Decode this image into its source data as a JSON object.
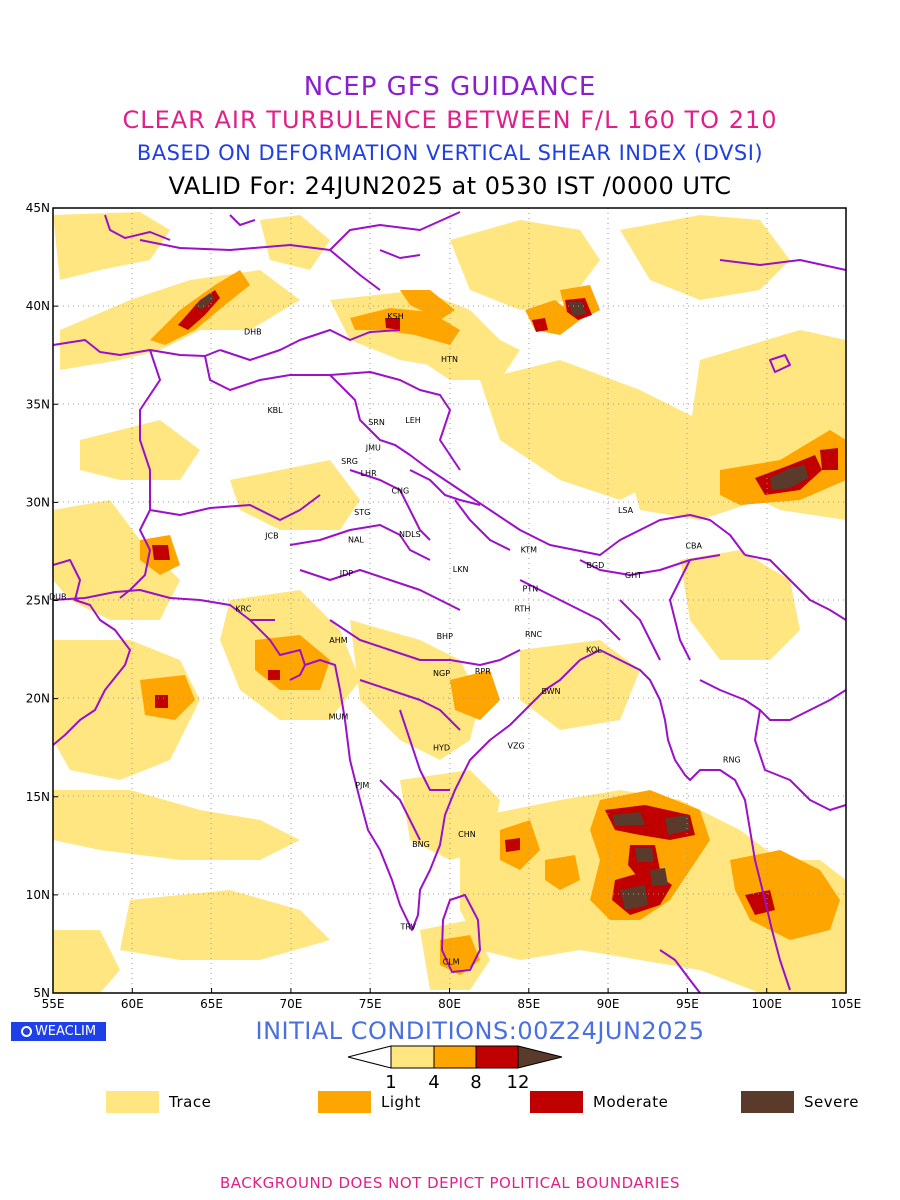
{
  "header": {
    "title_line1": "NCEP GFS GUIDANCE",
    "title_line2": "CLEAR AIR TURBULENCE BETWEEN F/L 160 TO 210",
    "title_line3": "BASED ON DEFORMATION VERTICAL SHEAR INDEX (DVSI)",
    "title_line4": "VALID For: 24JUN2025 at 0530 IST /0000 UTC"
  },
  "map": {
    "lon_labels": [
      "55E",
      "60E",
      "65E",
      "70E",
      "75E",
      "80E",
      "85E",
      "90E",
      "95E",
      "100E",
      "105E"
    ],
    "lat_labels": [
      "45N",
      "40N",
      "35N",
      "30N",
      "25N",
      "20N",
      "15N",
      "10N",
      "5N"
    ],
    "extent": {
      "lon_min": 55,
      "lon_max": 105,
      "lat_min": 5,
      "lat_max": 45
    },
    "cities": [
      {
        "code": "DHB",
        "lon": 67.6,
        "lat": 38.7
      },
      {
        "code": "KSH",
        "lon": 76.6,
        "lat": 39.5
      },
      {
        "code": "HTN",
        "lon": 80.0,
        "lat": 37.3
      },
      {
        "code": "KBL",
        "lon": 69.0,
        "lat": 34.7
      },
      {
        "code": "SRN",
        "lon": 75.4,
        "lat": 34.1
      },
      {
        "code": "LEH",
        "lon": 77.7,
        "lat": 34.2
      },
      {
        "code": "JMU",
        "lon": 75.2,
        "lat": 32.8
      },
      {
        "code": "SRG",
        "lon": 73.7,
        "lat": 32.1
      },
      {
        "code": "LHR",
        "lon": 74.9,
        "lat": 31.5
      },
      {
        "code": "CNG",
        "lon": 76.9,
        "lat": 30.6
      },
      {
        "code": "LSA",
        "lon": 91.1,
        "lat": 29.6
      },
      {
        "code": "STG",
        "lon": 74.5,
        "lat": 29.5
      },
      {
        "code": "JCB",
        "lon": 68.8,
        "lat": 28.3
      },
      {
        "code": "NAL",
        "lon": 74.1,
        "lat": 28.1
      },
      {
        "code": "NDLS",
        "lon": 77.5,
        "lat": 28.4
      },
      {
        "code": "KTM",
        "lon": 85.0,
        "lat": 27.6
      },
      {
        "code": "CBA",
        "lon": 95.4,
        "lat": 27.8
      },
      {
        "code": "JDP",
        "lon": 73.5,
        "lat": 26.4
      },
      {
        "code": "LKN",
        "lon": 80.7,
        "lat": 26.6
      },
      {
        "code": "BGD",
        "lon": 89.2,
        "lat": 26.8
      },
      {
        "code": "GHT",
        "lon": 91.6,
        "lat": 26.3
      },
      {
        "code": "PTN",
        "lon": 85.1,
        "lat": 25.6
      },
      {
        "code": "DUB",
        "lon": 55.3,
        "lat": 25.2
      },
      {
        "code": "KRC",
        "lon": 67.0,
        "lat": 24.6
      },
      {
        "code": "RTH",
        "lon": 84.6,
        "lat": 24.6
      },
      {
        "code": "AHM",
        "lon": 73.0,
        "lat": 23.0
      },
      {
        "code": "BHP",
        "lon": 79.7,
        "lat": 23.2
      },
      {
        "code": "RNC",
        "lon": 85.3,
        "lat": 23.3
      },
      {
        "code": "KOL",
        "lon": 89.1,
        "lat": 22.5
      },
      {
        "code": "NGP",
        "lon": 79.5,
        "lat": 21.3
      },
      {
        "code": "RPR",
        "lon": 82.1,
        "lat": 21.4
      },
      {
        "code": "BWN",
        "lon": 86.4,
        "lat": 20.4
      },
      {
        "code": "MUM",
        "lon": 73.0,
        "lat": 19.1
      },
      {
        "code": "HYD",
        "lon": 79.5,
        "lat": 17.5
      },
      {
        "code": "VZG",
        "lon": 84.2,
        "lat": 17.6
      },
      {
        "code": "RNG",
        "lon": 97.8,
        "lat": 16.9
      },
      {
        "code": "PJM",
        "lon": 74.5,
        "lat": 15.6
      },
      {
        "code": "CHN",
        "lon": 81.1,
        "lat": 13.1
      },
      {
        "code": "BNG",
        "lon": 78.2,
        "lat": 12.6
      },
      {
        "code": "TRV",
        "lon": 77.4,
        "lat": 8.4
      },
      {
        "code": "CLM",
        "lon": 80.1,
        "lat": 6.6
      }
    ]
  },
  "initial_conditions": "INITIAL CONDITIONS:00Z24JUN2025",
  "logo": {
    "text": "WEACLIM",
    "icon": "weaclim-logo-icon"
  },
  "colorbar": {
    "ticks": [
      "1",
      "4",
      "8",
      "12"
    ],
    "colors": [
      "#ffe680",
      "#ffa500",
      "#c00000",
      "#5a3a2a"
    ]
  },
  "legend": [
    {
      "label": "Trace",
      "color": "#ffe680"
    },
    {
      "label": "Light",
      "color": "#ffa500"
    },
    {
      "label": "Moderate",
      "color": "#c00000"
    },
    {
      "label": "Severe",
      "color": "#5a3a2a"
    }
  ],
  "footer": "BACKGROUND DOES NOT DEPICT POLITICAL BOUNDARIES"
}
